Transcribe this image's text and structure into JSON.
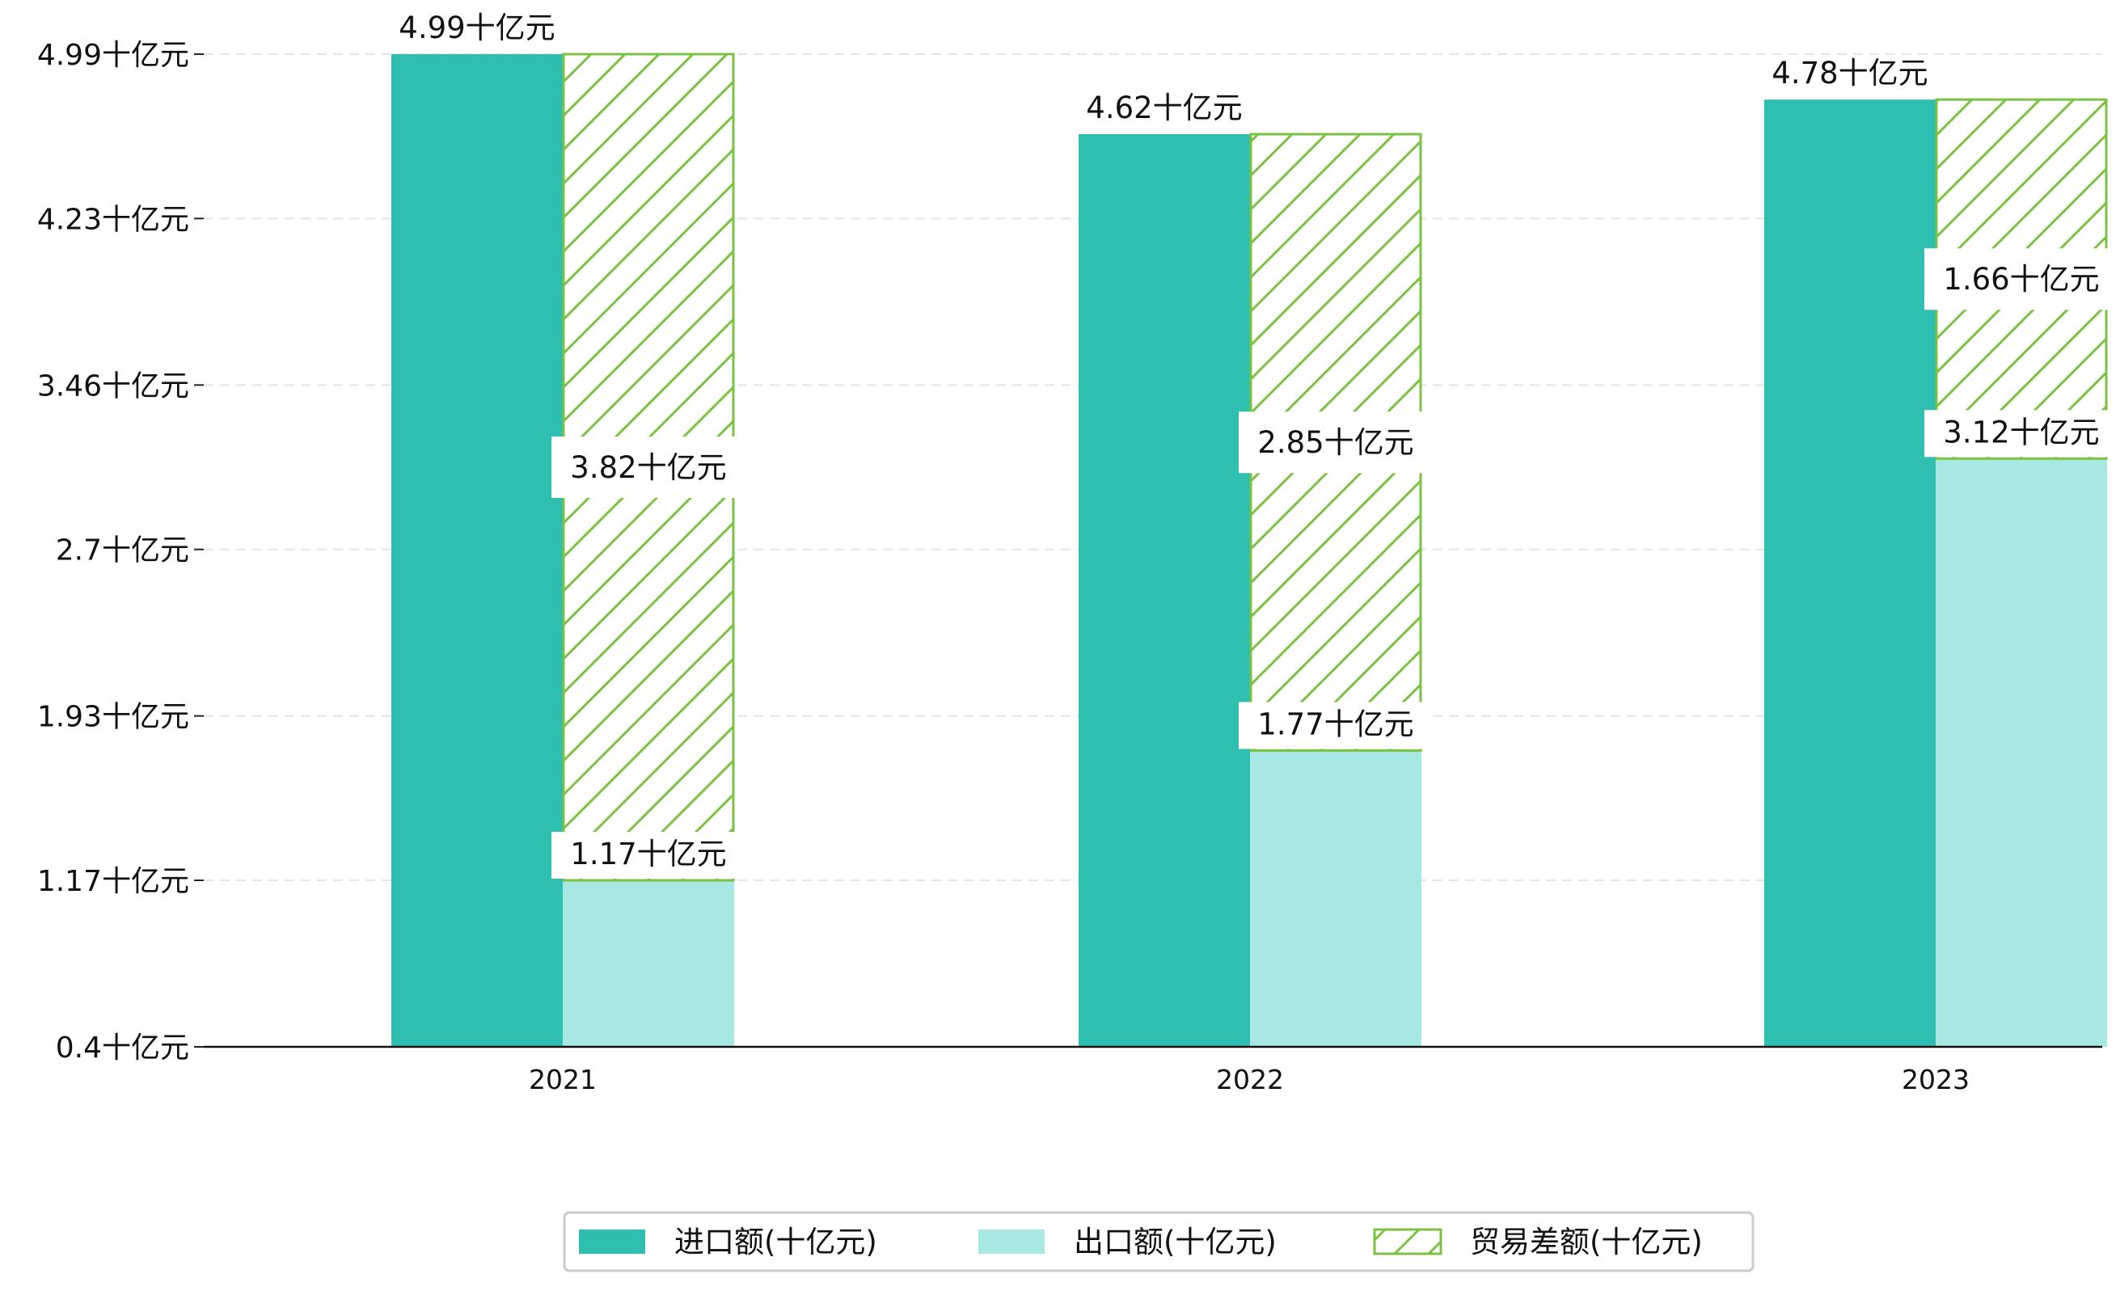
{
  "chart_data": {
    "type": "bar",
    "categories": [
      "2021",
      "2022",
      "2023"
    ],
    "series": [
      {
        "name": "进口额(十亿元)",
        "values": [
          4.99,
          4.62,
          4.78
        ],
        "labels": [
          "4.99十亿元",
          "4.62十亿元",
          "4.78十亿元"
        ],
        "color": "#2fbfb0",
        "style": "solid"
      },
      {
        "name": "出口额(十亿元)",
        "values": [
          1.17,
          1.77,
          3.12
        ],
        "labels": [
          "1.17十亿元",
          "1.77十亿元",
          "3.12十亿元"
        ],
        "color": "#a8e8e2",
        "style": "solid"
      },
      {
        "name": "贸易差额(十亿元)",
        "values": [
          3.82,
          2.85,
          1.66
        ],
        "labels": [
          "3.82十亿元",
          "2.85十亿元",
          "1.66十亿元"
        ],
        "color": "#7cc242",
        "style": "hatched",
        "stacked_on": "出口额(十亿元)"
      }
    ],
    "y_ticks": [
      "0.4十亿元",
      "1.17十亿元",
      "1.93十亿元",
      "2.7十亿元",
      "3.46十亿元",
      "4.23十亿元",
      "4.99十亿元"
    ],
    "y_tick_values": [
      0.4,
      1.17,
      1.93,
      2.7,
      3.46,
      4.23,
      4.99
    ],
    "ylim": [
      0.4,
      4.99
    ],
    "title": "",
    "xlabel": "",
    "ylabel": "",
    "grid": "horizontal-dashed",
    "legend_position": "bottom-center"
  }
}
